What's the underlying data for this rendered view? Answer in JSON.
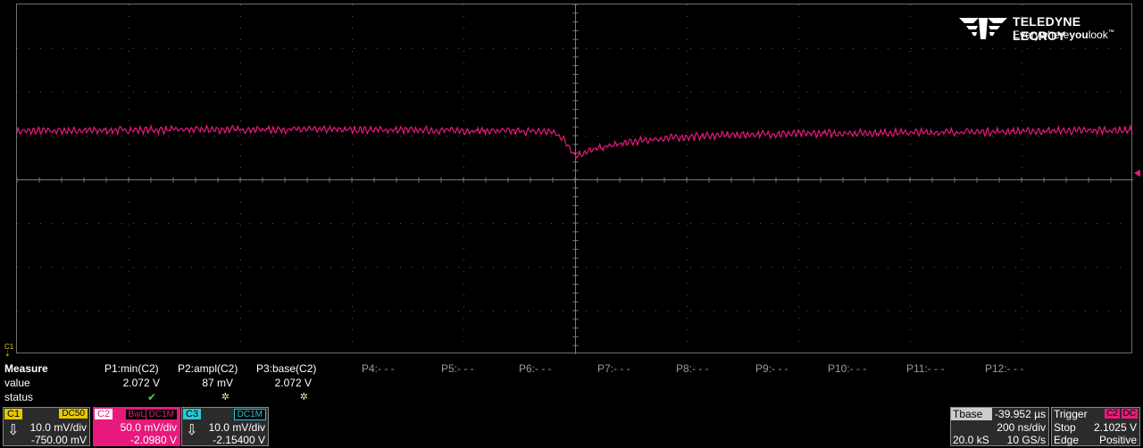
{
  "brand": {
    "name": "TELEDYNE LECROY",
    "tag_pre": "Everywhere",
    "tag_bold": "you",
    "tag_post": "look",
    "tm": "™"
  },
  "channel_marker": "C1",
  "trace_color": "#e8197c",
  "measure": {
    "title": "Measure",
    "row_labels": [
      "value",
      "status"
    ],
    "params": [
      {
        "name": "P1:min(C2)",
        "value": "2.072 V",
        "status": "ok"
      },
      {
        "name": "P2:ampl(C2)",
        "value": "87 mV",
        "status": "warn"
      },
      {
        "name": "P3:base(C2)",
        "value": "2.072 V",
        "status": "warn"
      },
      {
        "name": "P4:- - -",
        "value": "",
        "status": ""
      },
      {
        "name": "P5:- - -",
        "value": "",
        "status": ""
      },
      {
        "name": "P6:- - -",
        "value": "",
        "status": ""
      },
      {
        "name": "P7:- - -",
        "value": "",
        "status": ""
      },
      {
        "name": "P8:- - -",
        "value": "",
        "status": ""
      },
      {
        "name": "P9:- - -",
        "value": "",
        "status": ""
      },
      {
        "name": "P10:- - -",
        "value": "",
        "status": ""
      },
      {
        "name": "P11:- - -",
        "value": "",
        "status": ""
      },
      {
        "name": "P12:- - -",
        "value": "",
        "status": ""
      }
    ]
  },
  "channels": [
    {
      "tag": "C1",
      "coupling": "DC50",
      "vdiv": "10.0 mV/div",
      "offset": "-750.00 mV",
      "color": "#e6c800"
    },
    {
      "tag": "C2",
      "bwl": "BwL",
      "coupling": "DC1M",
      "vdiv": "50.0 mV/div",
      "offset": "-2.0980 V",
      "color": "#e8197c"
    },
    {
      "tag": "C3",
      "coupling": "DC1M",
      "vdiv": "10.0 mV/div",
      "offset": "-2.15400 V",
      "color": "#29c8d8"
    }
  ],
  "timebase": {
    "label": "Tbase",
    "delay": "-39.952 µs",
    "tdiv": "200 ns/div",
    "samples": "20.0 kS",
    "rate": "10 GS/s"
  },
  "trigger": {
    "label": "Trigger",
    "src": "C2",
    "cpl": "DC",
    "mode": "Stop",
    "level": "2.1025 V",
    "type": "Edge",
    "slope": "Positive"
  },
  "waveform": {
    "x_divisions": 10,
    "y_divisions": 8,
    "baseline_div": 5.1,
    "dip_min_div": 4.55,
    "dip_position_div": 5.0,
    "noise_pp_div": 0.15
  }
}
